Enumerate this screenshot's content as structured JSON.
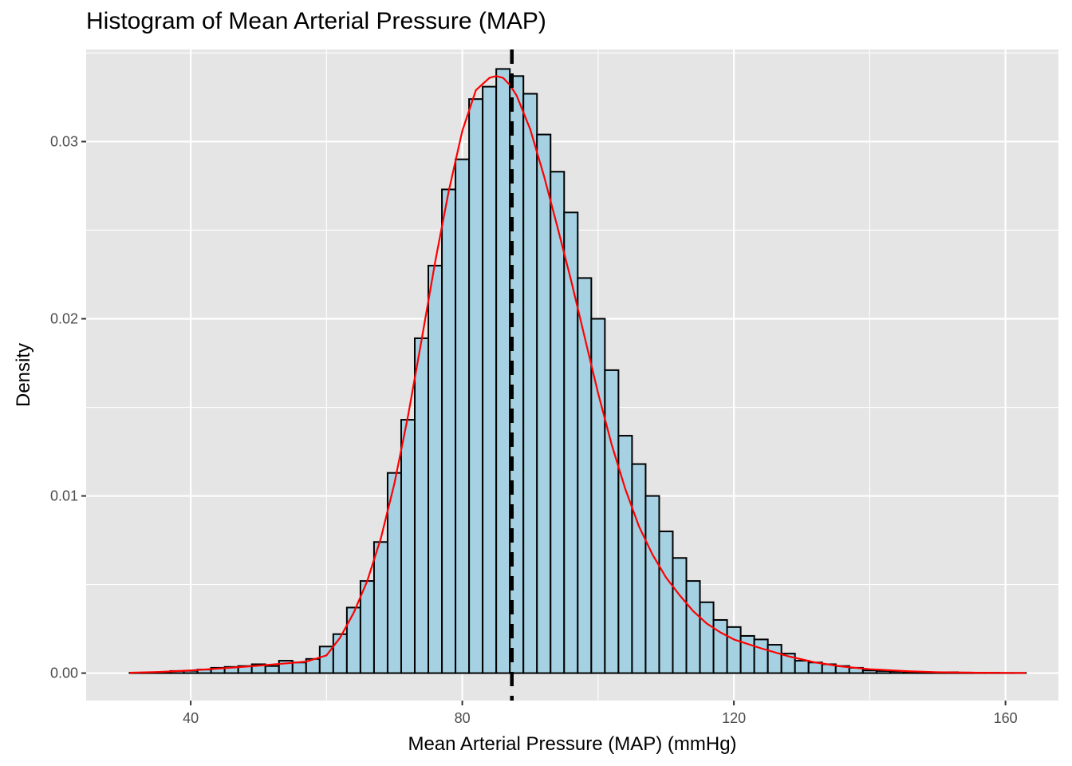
{
  "chart_data": {
    "type": "histogram",
    "title": "Histogram of Mean Arterial Pressure (MAP)",
    "xlabel": "Mean Arterial Pressure (MAP) (mmHg)",
    "ylabel": "Density",
    "xlim": [
      24.6,
      167.8
    ],
    "ylim": [
      -0.00155,
      0.0352
    ],
    "x_ticks": [
      40,
      80,
      120,
      160
    ],
    "x_tick_labels": [
      "40",
      "80",
      "120",
      "160"
    ],
    "y_ticks": [
      0.0,
      0.01,
      0.02,
      0.03
    ],
    "y_tick_labels": [
      "0.00",
      "0.01",
      "0.02",
      "0.03"
    ],
    "grid": true,
    "legend": "none",
    "bin_width": 2,
    "bins": {
      "x_start": [
        31,
        33,
        35,
        37,
        39,
        41,
        43,
        45,
        47,
        49,
        51,
        53,
        55,
        57,
        59,
        61,
        63,
        65,
        67,
        69,
        71,
        73,
        75,
        77,
        79,
        81,
        83,
        85,
        87,
        89,
        91,
        93,
        95,
        97,
        99,
        101,
        103,
        105,
        107,
        109,
        111,
        113,
        115,
        117,
        119,
        121,
        123,
        125,
        127,
        129,
        131,
        133,
        135,
        137,
        139,
        141,
        143,
        145,
        147,
        149,
        151,
        153,
        155,
        157,
        159,
        161
      ],
      "density": [
        2e-05,
        3e-05,
        5e-05,
        0.00012,
        0.00013,
        0.0002,
        0.0003,
        0.00035,
        0.0004,
        0.0005,
        0.0004,
        0.0007,
        0.0006,
        0.0008,
        0.0015,
        0.0022,
        0.0037,
        0.0052,
        0.0074,
        0.0113,
        0.0143,
        0.0189,
        0.023,
        0.0273,
        0.029,
        0.0324,
        0.0331,
        0.0341,
        0.0337,
        0.0327,
        0.0304,
        0.0283,
        0.026,
        0.0223,
        0.02,
        0.0171,
        0.0134,
        0.0118,
        0.01,
        0.008,
        0.0065,
        0.0052,
        0.004,
        0.003,
        0.0026,
        0.0021,
        0.0019,
        0.0016,
        0.0011,
        0.0007,
        0.0006,
        0.0005,
        0.0004,
        0.0003,
        0.00015,
        0.00012,
        0.0001,
        5e-05,
        3e-05,
        3e-05,
        5e-05,
        3e-05,
        2e-05,
        2e-05,
        1e-05,
        1e-05
      ]
    },
    "density_curve": {
      "x": [
        31,
        35,
        40,
        45,
        50,
        55,
        57,
        60,
        62,
        64,
        66,
        68,
        70,
        72,
        74,
        76,
        78,
        80,
        82,
        84,
        85,
        86,
        87,
        88,
        90,
        92,
        94,
        96,
        98,
        100,
        102,
        104,
        106,
        108,
        110,
        112,
        114,
        116,
        118,
        120,
        124,
        128,
        132,
        136,
        140,
        146,
        150,
        156,
        163
      ],
      "y": [
        2e-05,
        6e-05,
        0.00015,
        0.00028,
        0.00042,
        0.00058,
        0.00065,
        0.001,
        0.002,
        0.0034,
        0.0052,
        0.0076,
        0.0107,
        0.0145,
        0.0188,
        0.0232,
        0.0272,
        0.0306,
        0.0329,
        0.0336,
        0.0337,
        0.0336,
        0.0332,
        0.0326,
        0.0307,
        0.0281,
        0.0252,
        0.0222,
        0.019,
        0.0158,
        0.0129,
        0.0104,
        0.0083,
        0.0067,
        0.0054,
        0.0044,
        0.0035,
        0.0028,
        0.0023,
        0.0019,
        0.0014,
        0.00095,
        0.0006,
        0.00037,
        0.00022,
        0.0001,
        5e-05,
        2e-05,
        1e-05
      ],
      "color": "#ff0000"
    },
    "mean_line": {
      "x": 87.3,
      "style": "dashed",
      "color": "#000000"
    },
    "colors": {
      "bar_fill": "#a5d1e2",
      "bar_outline": "#000000",
      "panel_bg": "#e5e5e5",
      "grid": "#ffffff"
    }
  }
}
